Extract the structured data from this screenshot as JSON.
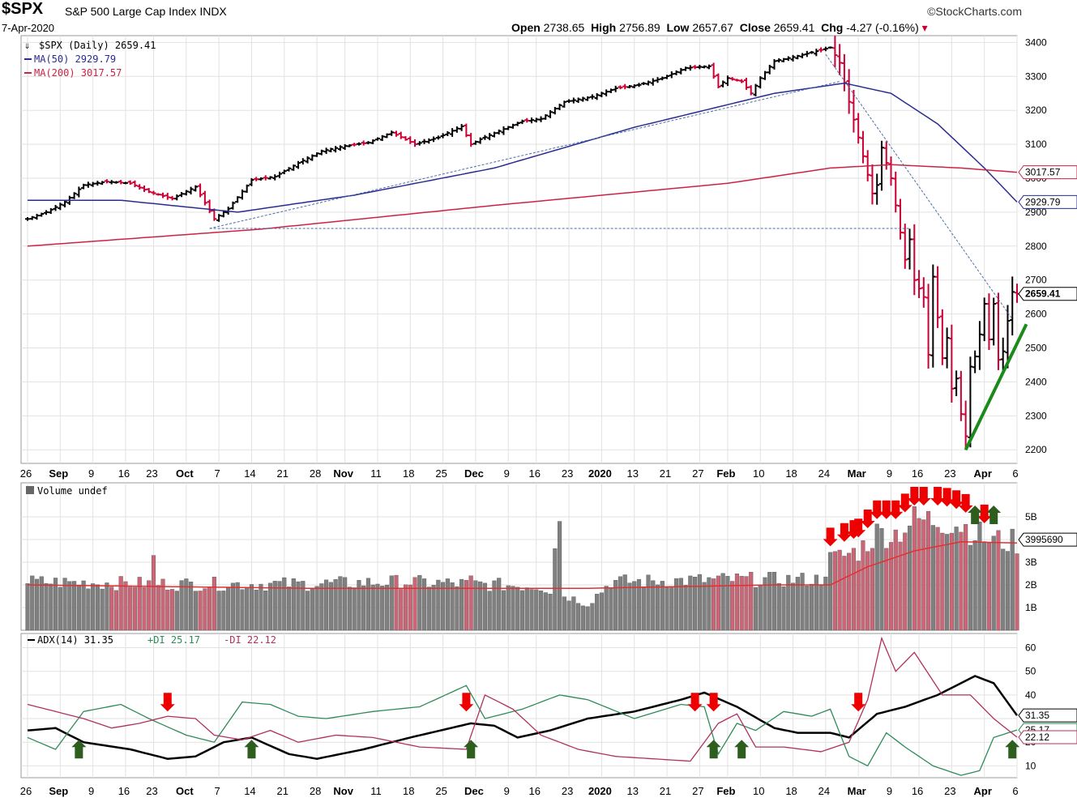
{
  "header": {
    "symbol": "$SPX",
    "company": "S&P 500 Large Cap Index",
    "exchange": "INDX",
    "date": "7-Apr-2020",
    "brand": "©StockCharts.com",
    "open_label": "Open",
    "open": "2738.65",
    "high_label": "High",
    "high": "2756.89",
    "low_label": "Low",
    "low": "2657.67",
    "close_label": "Close",
    "close": "2659.41",
    "chg_label": "Chg",
    "chg": "-4.27 (-0.16%)"
  },
  "legends": {
    "price": "$SPX (Daily) 2659.41",
    "ma50": "MA(50) 2929.79",
    "ma200": "MA(200) 3017.57",
    "volume": "Volume undef",
    "adx": "ADX(14) 31.35",
    "pdi": "+DI 25.17",
    "mdi": "-DI 22.12"
  },
  "colors": {
    "up": "#000000",
    "down": "#cc0033",
    "ma50": "#2b2b8f",
    "ma200": "#cc2244",
    "pdi": "#2e8b57",
    "mdi": "#b03060",
    "adx": "#000000",
    "trendline": "#1a8a1a",
    "arrow_down": "#ee0000",
    "arrow_up": "#2e5e1e",
    "vol_up": "#808080",
    "vol_down": "#cc6677"
  },
  "chart_data": [
    {
      "type": "ohlc",
      "name": "$SPX (Daily)",
      "ylim": [
        2160,
        3420
      ],
      "yticks": [
        "2200",
        "2300",
        "2400",
        "2500",
        "2600",
        "2700",
        "2800",
        "2900",
        "3000",
        "3100",
        "3200",
        "3300",
        "3400"
      ],
      "last_labels": {
        "close": "2659.41",
        "ma50": "2929.79",
        "ma200": "3017.57"
      },
      "close_anchors": [
        [
          0,
          2880
        ],
        [
          4,
          2900
        ],
        [
          8,
          2930
        ],
        [
          12,
          2980
        ],
        [
          17,
          2990
        ],
        [
          22,
          2985
        ],
        [
          26,
          2960
        ],
        [
          31,
          2940
        ],
        [
          36,
          2975
        ],
        [
          40,
          2880
        ],
        [
          43,
          2910
        ],
        [
          48,
          2995
        ],
        [
          53,
          3005
        ],
        [
          58,
          3045
        ],
        [
          63,
          3080
        ],
        [
          68,
          3095
        ],
        [
          73,
          3105
        ],
        [
          78,
          3135
        ],
        [
          83,
          3100
        ],
        [
          88,
          3120
        ],
        [
          93,
          3153
        ],
        [
          95,
          3100
        ],
        [
          97,
          3115
        ],
        [
          102,
          3145
        ],
        [
          106,
          3168
        ],
        [
          110,
          3175
        ],
        [
          115,
          3225
        ],
        [
          121,
          3240
        ],
        [
          126,
          3265
        ],
        [
          131,
          3275
        ],
        [
          136,
          3295
        ],
        [
          141,
          3325
        ],
        [
          146,
          3330
        ],
        [
          148,
          3270
        ],
        [
          150,
          3295
        ],
        [
          153,
          3285
        ],
        [
          155,
          3250
        ],
        [
          157,
          3295
        ],
        [
          160,
          3345
        ],
        [
          165,
          3360
        ],
        [
          170,
          3378
        ],
        [
          172,
          3385
        ],
        [
          174,
          3340
        ],
        [
          176,
          3225
        ],
        [
          178,
          3120
        ],
        [
          181,
          2955
        ],
        [
          182,
          2980
        ],
        [
          183,
          3090
        ],
        [
          185,
          3000
        ],
        [
          186,
          2920
        ],
        [
          188,
          2760
        ],
        [
          189,
          2820
        ],
        [
          190,
          2700
        ],
        [
          192,
          2650
        ],
        [
          193,
          2480
        ],
        [
          194,
          2710
        ],
        [
          196,
          2470
        ],
        [
          197,
          2530
        ],
        [
          198,
          2380
        ],
        [
          199,
          2410
        ],
        [
          200,
          2305
        ],
        [
          201,
          2240
        ],
        [
          202,
          2445
        ],
        [
          203,
          2475
        ],
        [
          204,
          2540
        ],
        [
          205,
          2630
        ],
        [
          206,
          2525
        ],
        [
          207,
          2630
        ],
        [
          208,
          2465
        ],
        [
          209,
          2490
        ],
        [
          210,
          2580
        ],
        [
          211,
          2665
        ],
        [
          212,
          2659.41
        ]
      ],
      "ma50_anchors": [
        [
          0,
          2935
        ],
        [
          20,
          2935
        ],
        [
          45,
          2900
        ],
        [
          70,
          2950
        ],
        [
          100,
          3030
        ],
        [
          130,
          3150
        ],
        [
          160,
          3250
        ],
        [
          175,
          3280
        ],
        [
          185,
          3250
        ],
        [
          195,
          3160
        ],
        [
          205,
          3030
        ],
        [
          212,
          2929.79
        ]
      ],
      "ma200_anchors": [
        [
          0,
          2800
        ],
        [
          50,
          2850
        ],
        [
          100,
          2920
        ],
        [
          150,
          2985
        ],
        [
          172,
          3030
        ],
        [
          185,
          3040
        ],
        [
          200,
          3030
        ],
        [
          212,
          3017.57
        ]
      ],
      "trendlines": [
        {
          "from": [
            39,
            2852
          ],
          "to": [
            174,
            3285
          ]
        },
        {
          "from": [
            39,
            2852
          ],
          "to": [
            189,
            2852
          ]
        },
        {
          "from": [
            171,
            3365
          ],
          "to": [
            211,
            2585
          ]
        },
        {
          "from": [
            201,
            2200
          ],
          "to": [
            214,
            2570
          ]
        }
      ]
    },
    {
      "type": "bar",
      "name": "Volume",
      "ylim": [
        0,
        6.5
      ],
      "yticks": [
        "1B",
        "2B",
        "3B",
        "4B",
        "5B"
      ],
      "last_label": "3995690",
      "units": "billions",
      "anchors": [
        [
          0,
          2.2
        ],
        [
          30,
          2.1
        ],
        [
          60,
          2.1
        ],
        [
          80,
          2.2
        ],
        [
          110,
          2.0
        ],
        [
          120,
          1.2
        ],
        [
          125,
          2.2
        ],
        [
          150,
          2.3
        ],
        [
          160,
          2.3
        ],
        [
          170,
          2.3
        ],
        [
          172,
          3.2
        ],
        [
          178,
          3.6
        ],
        [
          182,
          4.4
        ],
        [
          186,
          4.4
        ],
        [
          190,
          5.0
        ],
        [
          196,
          5.0
        ],
        [
          200,
          4.8
        ],
        [
          206,
          4.1
        ],
        [
          212,
          3.995
        ]
      ],
      "spikes": [
        [
          27,
          3.3
        ],
        [
          113,
          3.6
        ],
        [
          113,
          3.6
        ],
        [
          114,
          4.8
        ],
        [
          95,
          2.4
        ]
      ],
      "ma_anchors": [
        [
          0,
          2.0
        ],
        [
          60,
          1.85
        ],
        [
          120,
          1.85
        ],
        [
          160,
          2.0
        ],
        [
          172,
          2.0
        ],
        [
          180,
          2.8
        ],
        [
          190,
          3.5
        ],
        [
          200,
          3.9
        ],
        [
          212,
          3.85
        ]
      ]
    },
    {
      "type": "line",
      "name": "ADX(14)",
      "ylim": [
        5,
        66
      ],
      "yticks": [
        "10",
        "20",
        "30",
        "40",
        "50",
        "60"
      ],
      "last_labels": {
        "adx": "31.35",
        "pdi": "25.17",
        "mdi": "22.12"
      },
      "series": [
        {
          "name": "ADX(14)",
          "anchors": [
            [
              0,
              25
            ],
            [
              6,
              26
            ],
            [
              12,
              20
            ],
            [
              22,
              17
            ],
            [
              30,
              13
            ],
            [
              36,
              14
            ],
            [
              42,
              20
            ],
            [
              48,
              22
            ],
            [
              56,
              15
            ],
            [
              62,
              13
            ],
            [
              72,
              17
            ],
            [
              82,
              22
            ],
            [
              95,
              28
            ],
            [
              100,
              27
            ],
            [
              105,
              22
            ],
            [
              112,
              25
            ],
            [
              120,
              30
            ],
            [
              130,
              33
            ],
            [
              140,
              38
            ],
            [
              145,
              41
            ],
            [
              152,
              35
            ],
            [
              160,
              26
            ],
            [
              165,
              24
            ],
            [
              172,
              24
            ],
            [
              176,
              22
            ],
            [
              182,
              32
            ],
            [
              188,
              35
            ],
            [
              195,
              40
            ],
            [
              203,
              48
            ],
            [
              207,
              45
            ],
            [
              212,
              31.35
            ]
          ]
        },
        {
          "name": "+DI",
          "anchors": [
            [
              0,
              22
            ],
            [
              6,
              17
            ],
            [
              12,
              33
            ],
            [
              20,
              36
            ],
            [
              26,
              30
            ],
            [
              34,
              23
            ],
            [
              40,
              20
            ],
            [
              46,
              37
            ],
            [
              52,
              36
            ],
            [
              58,
              31
            ],
            [
              64,
              30
            ],
            [
              74,
              33
            ],
            [
              84,
              35
            ],
            [
              94,
              44
            ],
            [
              98,
              30
            ],
            [
              106,
              34
            ],
            [
              114,
              40
            ],
            [
              120,
              38
            ],
            [
              130,
              30
            ],
            [
              140,
              36
            ],
            [
              145,
              35
            ],
            [
              148,
              15
            ],
            [
              152,
              28
            ],
            [
              156,
              25
            ],
            [
              162,
              33
            ],
            [
              168,
              31
            ],
            [
              172,
              34
            ],
            [
              176,
              14
            ],
            [
              180,
              10
            ],
            [
              184,
              24
            ],
            [
              188,
              18
            ],
            [
              194,
              10
            ],
            [
              200,
              6
            ],
            [
              204,
              8
            ],
            [
              207,
              22
            ],
            [
              212,
              25.17
            ]
          ]
        },
        {
          "name": "-DI",
          "anchors": [
            [
              0,
              36
            ],
            [
              6,
              33
            ],
            [
              12,
              30
            ],
            [
              18,
              26
            ],
            [
              24,
              28
            ],
            [
              30,
              31
            ],
            [
              36,
              30
            ],
            [
              40,
              23
            ],
            [
              46,
              21
            ],
            [
              52,
              25
            ],
            [
              58,
              20
            ],
            [
              66,
              23
            ],
            [
              74,
              22
            ],
            [
              84,
              18
            ],
            [
              94,
              17
            ],
            [
              98,
              40
            ],
            [
              104,
              34
            ],
            [
              110,
              23
            ],
            [
              118,
              17
            ],
            [
              126,
              14
            ],
            [
              134,
              13
            ],
            [
              142,
              12
            ],
            [
              148,
              28
            ],
            [
              152,
              32
            ],
            [
              156,
              18
            ],
            [
              162,
              18
            ],
            [
              170,
              16
            ],
            [
              176,
              20
            ],
            [
              180,
              38
            ],
            [
              183,
              64
            ],
            [
              186,
              50
            ],
            [
              190,
              58
            ],
            [
              196,
              40
            ],
            [
              202,
              40
            ],
            [
              207,
              30
            ],
            [
              212,
              22.12
            ]
          ]
        }
      ]
    }
  ],
  "xaxis_top": [
    "26",
    "Sep",
    "9",
    "16",
    "23",
    "Oct",
    "7",
    "14",
    "21",
    "28",
    "Nov",
    "11",
    "18",
    "25",
    "Dec",
    "9",
    "16",
    "23",
    "2020",
    "13",
    "21",
    "27",
    "Feb",
    "10",
    "18",
    "24",
    "Mar",
    "9",
    "16",
    "23",
    "Apr",
    "6"
  ],
  "xaxis_bottom": [
    "26",
    "Sep",
    "9",
    "16",
    "23",
    "Oct",
    "7",
    "14",
    "21",
    "28",
    "Nov",
    "11",
    "18",
    "25",
    "Dec",
    "9",
    "16",
    "23",
    "2020",
    "13",
    "21",
    "27",
    "Feb",
    "10",
    "18",
    "24",
    "Mar",
    "9",
    "16",
    "23",
    "Apr",
    "6"
  ],
  "bold_ticks": [
    "Sep",
    "Oct",
    "Nov",
    "Dec",
    "2020",
    "Feb",
    "Mar",
    "Apr"
  ],
  "annotations": {
    "volume_down_arrows": [
      172,
      175,
      177,
      178,
      180,
      182,
      184,
      186,
      188,
      190,
      192,
      195,
      197,
      199,
      201,
      205
    ],
    "volume_up_arrows": [
      203,
      207
    ],
    "adx_down_arrows": [
      30,
      94,
      143,
      147,
      178
    ],
    "adx_up_arrows": [
      11,
      48,
      95,
      147,
      153,
      212
    ]
  }
}
